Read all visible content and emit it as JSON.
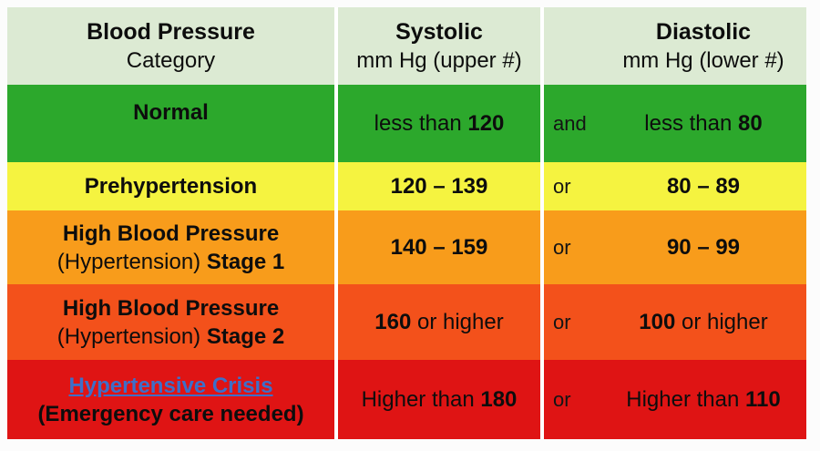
{
  "page": {
    "background": "#fcfcfc",
    "divider_color": "#ffffff",
    "link_color": "#3d6fc9",
    "text_color": "#0d0d0d"
  },
  "header": {
    "bg": "#dcead3",
    "category": {
      "line1": "Blood Pressure",
      "line2": "Category"
    },
    "systolic": {
      "line1": "Systolic",
      "line2": "mm Hg (upper #)"
    },
    "diastolic": {
      "line1": "Diastolic",
      "line2": "mm Hg (lower #)"
    }
  },
  "rows": [
    {
      "bg": "#2ca82c",
      "category": {
        "line1": "Normal",
        "line1_link": false,
        "line2": null,
        "nudge_up": true
      },
      "systolic": [
        {
          "t": "less than ",
          "b": false
        },
        {
          "t": "120",
          "b": true
        }
      ],
      "connector": "and",
      "diastolic": [
        {
          "t": "less than ",
          "b": false
        },
        {
          "t": "80",
          "b": true
        }
      ]
    },
    {
      "bg": "#f5f340",
      "category": {
        "line1": "Prehypertension",
        "line1_link": false,
        "line2": null,
        "nudge_up": false
      },
      "systolic": [
        {
          "t": "120 – 139",
          "b": true
        }
      ],
      "connector": "or",
      "diastolic": [
        {
          "t": "80 – 89",
          "b": true
        }
      ]
    },
    {
      "bg": "#f89c1b",
      "category": {
        "line1": "High Blood Pressure",
        "line1_link": false,
        "line2": [
          {
            "t": "(Hypertension) ",
            "b": false
          },
          {
            "t": "Stage 1",
            "b": true
          }
        ],
        "nudge_up": false
      },
      "systolic": [
        {
          "t": "140 – 159",
          "b": true
        }
      ],
      "connector": "or",
      "diastolic": [
        {
          "t": "90 – 99",
          "b": true
        }
      ]
    },
    {
      "bg": "#f3511b",
      "category": {
        "line1": "High Blood Pressure",
        "line1_link": false,
        "line2": [
          {
            "t": "(Hypertension) ",
            "b": false
          },
          {
            "t": "Stage 2",
            "b": true
          }
        ],
        "nudge_up": false
      },
      "systolic": [
        {
          "t": "160",
          "b": true
        },
        {
          "t": " or higher",
          "b": false
        }
      ],
      "connector": "or",
      "diastolic": [
        {
          "t": "100",
          "b": true
        },
        {
          "t": " or higher",
          "b": false
        }
      ]
    },
    {
      "bg": "#df1414",
      "category": {
        "line1": "Hypertensive Crisis",
        "line1_link": true,
        "line2": [
          {
            "t": "(Emergency care needed)",
            "b": true
          }
        ],
        "nudge_up": false
      },
      "systolic": [
        {
          "t": "Higher than ",
          "b": false
        },
        {
          "t": "180",
          "b": true
        }
      ],
      "connector": "or",
      "diastolic": [
        {
          "t": "Higher than ",
          "b": false
        },
        {
          "t": "110",
          "b": true
        }
      ]
    }
  ],
  "chart_data": {
    "type": "table",
    "title": "Blood Pressure Categories",
    "columns": [
      "Blood Pressure Category",
      "Systolic mm Hg (upper #)",
      "and/or",
      "Diastolic mm Hg (lower #)"
    ],
    "rows": [
      [
        "Normal",
        "less than 120",
        "and",
        "less than 80"
      ],
      [
        "Prehypertension",
        "120 – 139",
        "or",
        "80 – 89"
      ],
      [
        "High Blood Pressure (Hypertension) Stage 1",
        "140 – 159",
        "or",
        "90 – 99"
      ],
      [
        "High Blood Pressure (Hypertension) Stage 2",
        "160 or higher",
        "or",
        "100 or higher"
      ],
      [
        "Hypertensive Crisis (Emergency care needed)",
        "Higher than 180",
        "or",
        "Higher than 110"
      ]
    ],
    "row_colors": [
      "#2ca82c",
      "#f5f340",
      "#f89c1b",
      "#f3511b",
      "#df1414"
    ],
    "header_color": "#dcead3"
  }
}
